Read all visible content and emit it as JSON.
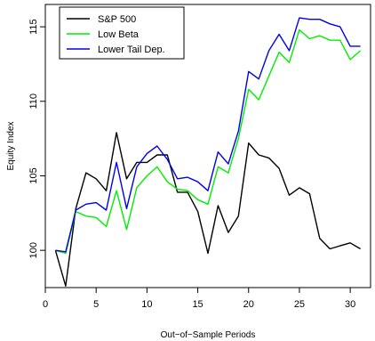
{
  "chart_data": {
    "type": "line",
    "xlabel": "Out−of−Sample Periods",
    "ylabel": "Equity Index",
    "xlim": [
      0,
      32
    ],
    "ylim": [
      97.5,
      116.5
    ],
    "xticks": [
      0,
      5,
      10,
      15,
      20,
      25,
      30
    ],
    "yticks": [
      100,
      105,
      110,
      115
    ],
    "legend_position": "top-left",
    "x": [
      1,
      2,
      3,
      4,
      5,
      6,
      7,
      8,
      9,
      10,
      11,
      12,
      13,
      14,
      15,
      16,
      17,
      18,
      19,
      20,
      21,
      22,
      23,
      24,
      25,
      26,
      27,
      28,
      29,
      30,
      31
    ],
    "series": [
      {
        "name": "S&P 500",
        "color": "#000000",
        "values": [
          100.0,
          97.6,
          102.8,
          105.2,
          104.8,
          104.0,
          107.9,
          104.8,
          105.9,
          105.9,
          106.4,
          106.4,
          103.9,
          103.9,
          102.6,
          99.8,
          103.0,
          101.2,
          102.3,
          107.2,
          106.4,
          106.2,
          105.5,
          103.7,
          104.2,
          103.8,
          100.8,
          100.1,
          100.3,
          100.5,
          100.1
        ]
      },
      {
        "name": "Low Beta",
        "color": "#00ee00",
        "values": [
          100.0,
          99.8,
          102.6,
          102.3,
          102.2,
          101.6,
          104.0,
          101.4,
          104.2,
          105.0,
          105.6,
          104.6,
          104.1,
          104.0,
          103.4,
          103.1,
          105.6,
          105.2,
          107.5,
          110.8,
          110.1,
          111.7,
          113.3,
          112.6,
          114.8,
          114.2,
          114.4,
          114.1,
          114.1,
          112.8,
          113.4
        ]
      },
      {
        "name": "Lower Tail Dep.",
        "color": "#0000ee",
        "values": [
          100.0,
          99.9,
          102.7,
          103.1,
          103.2,
          102.7,
          105.9,
          102.8,
          105.6,
          106.5,
          107.0,
          106.1,
          104.8,
          104.9,
          104.6,
          104.0,
          106.6,
          105.8,
          108.0,
          112.0,
          111.5,
          113.4,
          114.5,
          113.4,
          115.6,
          115.5,
          115.5,
          115.2,
          115.0,
          113.7,
          113.7
        ]
      }
    ]
  }
}
